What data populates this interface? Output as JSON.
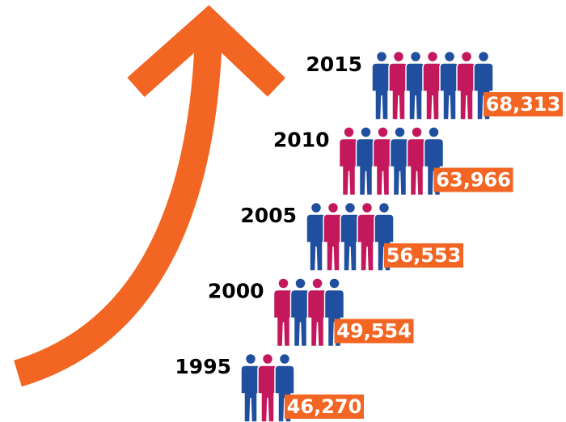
{
  "chart_data": {
    "type": "pictogram",
    "categories": [
      "1995",
      "2000",
      "2005",
      "2010",
      "2015"
    ],
    "values": [
      46270,
      49554,
      56553,
      63966,
      68313
    ],
    "value_labels": [
      "46,270",
      "49,554",
      "56,553",
      "63,966",
      "68,313"
    ],
    "colors": [
      "#1f4f9e",
      "#c4185c"
    ],
    "label_color": "#f26522",
    "arrow_color": "#f26522"
  }
}
